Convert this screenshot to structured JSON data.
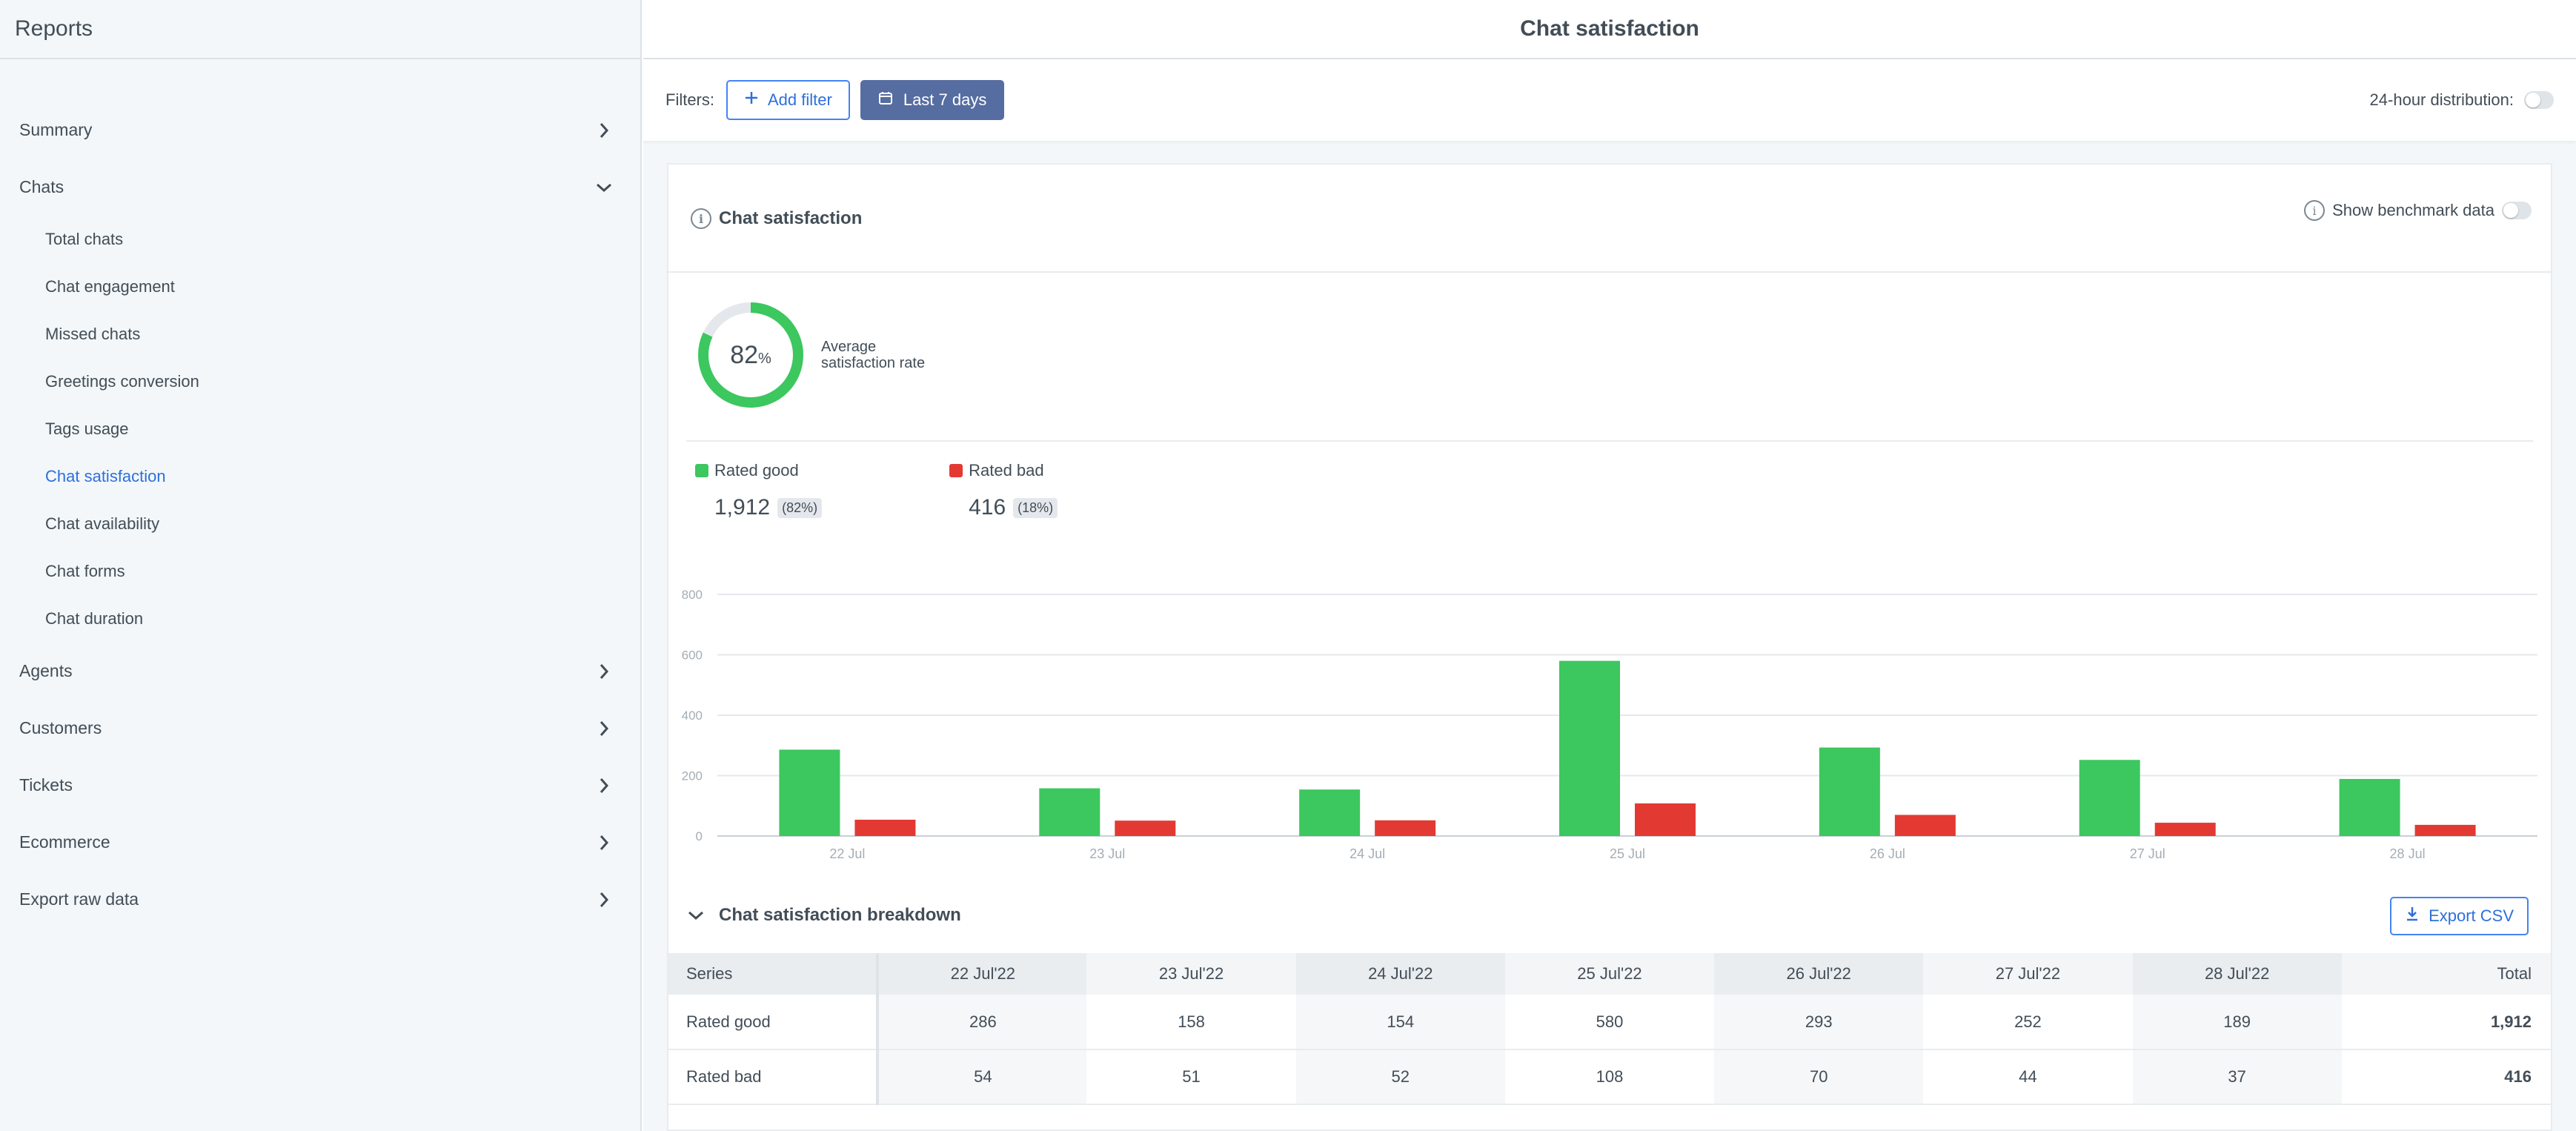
{
  "sidebar": {
    "title": "Reports",
    "sections": [
      {
        "label": "Summary",
        "expanded": false
      },
      {
        "label": "Chats",
        "expanded": true
      }
    ],
    "chat_items": [
      {
        "label": "Total chats",
        "active": false
      },
      {
        "label": "Chat engagement",
        "active": false
      },
      {
        "label": "Missed chats",
        "active": false
      },
      {
        "label": "Greetings conversion",
        "active": false
      },
      {
        "label": "Tags usage",
        "active": false
      },
      {
        "label": "Chat satisfaction",
        "active": true
      },
      {
        "label": "Chat availability",
        "active": false
      },
      {
        "label": "Chat forms",
        "active": false
      },
      {
        "label": "Chat duration",
        "active": false
      }
    ],
    "more_sections": [
      {
        "label": "Agents"
      },
      {
        "label": "Customers"
      },
      {
        "label": "Tickets"
      },
      {
        "label": "Ecommerce"
      },
      {
        "label": "Export raw data"
      }
    ]
  },
  "header": {
    "title": "Chat satisfaction"
  },
  "filters": {
    "label": "Filters:",
    "add_filter": "Add filter",
    "period": "Last 7 days",
    "distribution_label": "24-hour distribution:",
    "distribution_on": false
  },
  "card": {
    "title": "Chat satisfaction",
    "benchmark_label": "Show benchmark data",
    "benchmark_on": false,
    "rate_value": "82",
    "rate_symbol": "%",
    "rate_label_1": "Average",
    "rate_label_2": "satisfaction rate",
    "rate_fraction": 0.82
  },
  "legend": {
    "good": {
      "label": "Rated good",
      "value": "1,912",
      "pct": "(82%)"
    },
    "bad": {
      "label": "Rated bad",
      "value": "416",
      "pct": "(18%)"
    }
  },
  "colors": {
    "good": "#3cc75f",
    "bad": "#e23a33",
    "accent": "#2f6fdc",
    "period_button": "#566da1"
  },
  "chart_data": {
    "type": "bar",
    "categories": [
      "22 Jul",
      "23 Jul",
      "24 Jul",
      "25 Jul",
      "26 Jul",
      "27 Jul",
      "28 Jul"
    ],
    "series": [
      {
        "name": "Rated good",
        "values": [
          286,
          158,
          154,
          580,
          293,
          252,
          189
        ]
      },
      {
        "name": "Rated bad",
        "values": [
          54,
          51,
          52,
          108,
          70,
          44,
          37
        ]
      }
    ],
    "y_ticks": [
      0,
      200,
      400,
      600,
      800
    ],
    "ylim": [
      0,
      800
    ],
    "grid": true
  },
  "breakdown": {
    "title": "Chat satisfaction breakdown",
    "export_label": "Export CSV",
    "columns": [
      "Series",
      "22 Jul'22",
      "23 Jul'22",
      "24 Jul'22",
      "25 Jul'22",
      "26 Jul'22",
      "27 Jul'22",
      "28 Jul'22",
      "Total"
    ],
    "rows": [
      [
        "Rated good",
        "286",
        "158",
        "154",
        "580",
        "293",
        "252",
        "189",
        "1,912"
      ],
      [
        "Rated bad",
        "54",
        "51",
        "52",
        "108",
        "70",
        "44",
        "37",
        "416"
      ]
    ]
  }
}
